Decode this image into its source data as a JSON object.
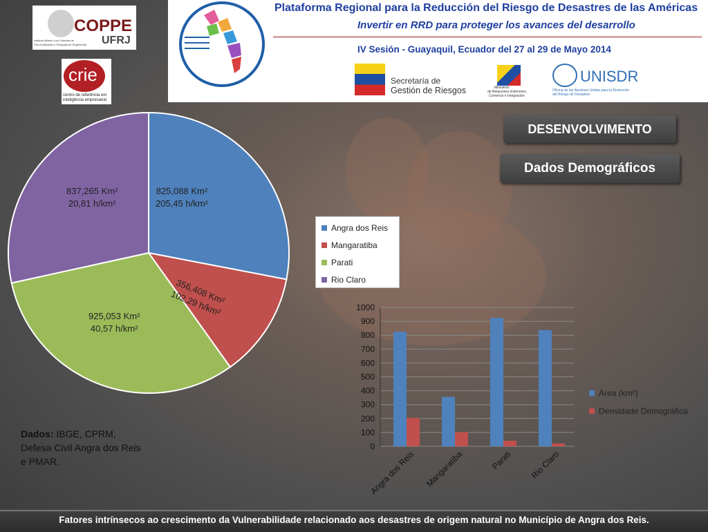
{
  "banner": {
    "title": "Plataforma Regional para la Reducción del Riesgo de Desastres de las Américas",
    "subtitle": "Invertir en RRD para proteger los avances del desarrollo",
    "session": "IV Sesión - Guayaquil, Ecuador del 27 al 29 de Mayo 2014",
    "sgr_line1": "Secretaría de",
    "sgr_line2": "Gestión de Riesgos",
    "ministry_line1": "Ministerio",
    "ministry_line2": "de Relaciones Exteriores,",
    "ministry_line3": "Comercio e Integración",
    "unisdr": "UNISDR",
    "unisdr_sub1": "Oficina de las Naciones Unidas para la Reducción",
    "unisdr_sub2": "del Riesgo de Desastres"
  },
  "logos": {
    "coppe": "COPPE",
    "ufrj": "UFRJ",
    "coppe_sub1": "Instituto Alberto Luiz Coimbra de",
    "coppe_sub2": "Pós-Graduação e Pesquisa de Engenharia",
    "crie": "crie",
    "crie_sub1": "centro de referência em",
    "crie_sub2": "inteligência empresarial"
  },
  "tags": {
    "section": "DESENVOLVIMENTO",
    "topic": "Dados Demográficos"
  },
  "source": {
    "label": "Dados:",
    "text": "IBGE, CPRM, Defesa Civil Angra dos Reis e PMAR."
  },
  "footer": "Fatores intrínsecos  ao  crescimento da Vulnerabilidade  relacionado  aos desastres  de origem natural no Município de Angra dos Reis.",
  "chart_data": [
    {
      "type": "pie",
      "categories": [
        "Angra dos Reis",
        "Mangaratiba",
        "Parati",
        "Rio Claro"
      ],
      "values": [
        825.088,
        356.408,
        925.053,
        837.265
      ],
      "labels": [
        [
          "825,088 Km²",
          "205,45 h/km²"
        ],
        [
          "356,408 Km²",
          "102,29 h/km²"
        ],
        [
          "925,053 Km²",
          "40,57 h/km²"
        ],
        [
          "837,265 Km²",
          "20,81 h/km²"
        ]
      ],
      "colors": [
        "#4f81bd",
        "#c0504d",
        "#9bbb59",
        "#8064a2"
      ],
      "legend_position": "right"
    },
    {
      "type": "bar",
      "categories": [
        "Angra dos Reis",
        "Mangaratiba",
        "Parati",
        "Rio Claro"
      ],
      "series": [
        {
          "name": "Área (km²)",
          "values": [
            825,
            356,
            925,
            837
          ],
          "color": "#4f81bd"
        },
        {
          "name": "Densidade Demográfica",
          "values": [
            205.45,
            102.29,
            40.57,
            20.81
          ],
          "color": "#c0504d"
        }
      ],
      "ylim": [
        0,
        1000
      ],
      "yticks": [
        0,
        100,
        200,
        300,
        400,
        500,
        600,
        700,
        800,
        900,
        1000
      ],
      "grid": true,
      "legend_position": "right"
    }
  ]
}
